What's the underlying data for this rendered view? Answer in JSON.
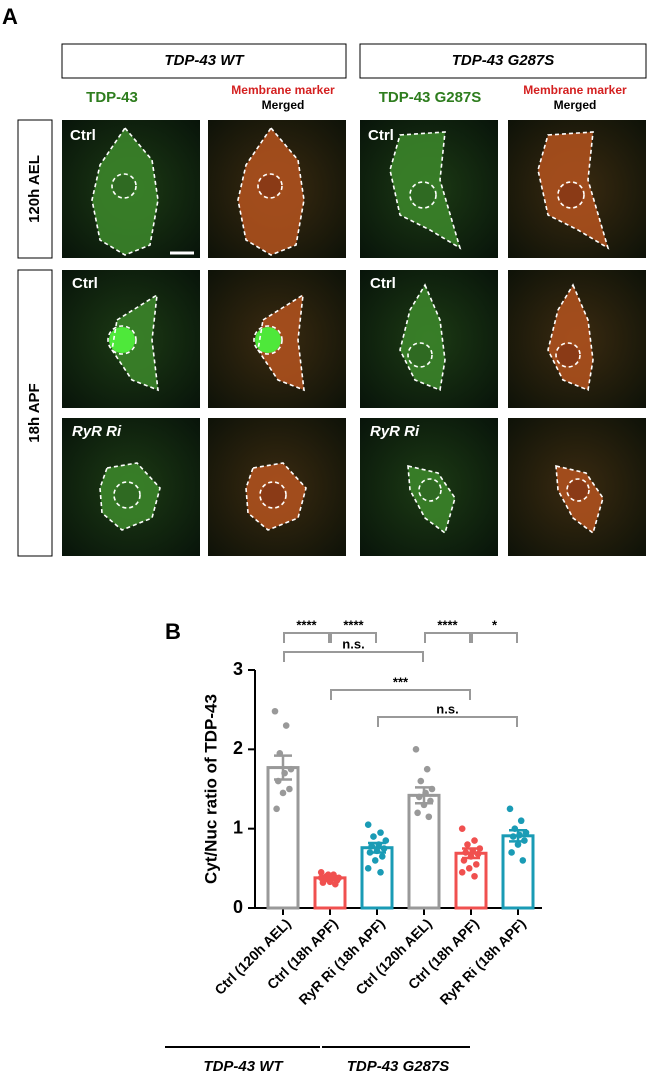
{
  "panel_a": {
    "label": "A",
    "groups": [
      "TDP-43 WT",
      "TDP-43 G287S"
    ],
    "channels": [
      {
        "text": "TDP-43",
        "color": "#2e7d1e"
      },
      {
        "text": "Membrane marker",
        "color": "#d42020"
      },
      {
        "text": "Merged",
        "color": "#000000"
      },
      {
        "text": "TDP-43 G287S",
        "color": "#2e7d1e"
      }
    ],
    "row_labels": [
      "120h AEL",
      "18h APF"
    ],
    "image_labels": [
      "Ctrl",
      "Ctrl",
      "Ctrl",
      "Ctrl",
      "RyR Ri",
      "RyR Ri"
    ]
  },
  "chart_data": {
    "type": "bar",
    "panel_label": "B",
    "ylabel": "Cyt/Nuc ratio of TDP-43",
    "categories": [
      "Ctrl (120h AEL)",
      "Ctrl (18h APF)",
      "RyR Ri (18h APF)",
      "Ctrl (120h AEL)",
      "Ctrl (18h APF)",
      "RyR Ri (18h APF)"
    ],
    "values": [
      1.77,
      0.38,
      0.76,
      1.42,
      0.69,
      0.91
    ],
    "errors": [
      0.15,
      0.02,
      0.06,
      0.1,
      0.06,
      0.07
    ],
    "colors": [
      "#999999",
      "#f0504f",
      "#1a9bb5",
      "#999999",
      "#f0504f",
      "#1a9bb5"
    ],
    "points": [
      [
        2.48,
        2.3,
        1.95,
        1.75,
        1.7,
        1.6,
        1.5,
        1.45,
        1.25
      ],
      [
        0.45,
        0.42,
        0.4,
        0.38,
        0.37,
        0.36,
        0.35,
        0.33,
        0.32,
        0.3,
        0.42,
        0.38
      ],
      [
        1.05,
        0.95,
        0.9,
        0.85,
        0.8,
        0.78,
        0.75,
        0.72,
        0.7,
        0.65,
        0.6,
        0.5,
        0.45
      ],
      [
        2.0,
        1.75,
        1.6,
        1.5,
        1.45,
        1.4,
        1.35,
        1.3,
        1.2,
        1.15
      ],
      [
        1.0,
        0.85,
        0.8,
        0.75,
        0.72,
        0.7,
        0.68,
        0.65,
        0.6,
        0.55,
        0.5,
        0.45,
        0.4
      ],
      [
        1.25,
        1.1,
        1.0,
        0.95,
        0.92,
        0.9,
        0.85,
        0.8,
        0.7,
        0.6
      ]
    ],
    "significance": [
      {
        "pair": [
          0,
          1
        ],
        "label": "****"
      },
      {
        "pair": [
          1,
          2
        ],
        "label": "****"
      },
      {
        "pair": [
          3,
          4
        ],
        "label": "****"
      },
      {
        "pair": [
          4,
          5
        ],
        "label": "*"
      },
      {
        "pair": [
          0,
          3
        ],
        "label": "n.s."
      },
      {
        "pair": [
          1,
          4
        ],
        "label": "***"
      },
      {
        "pair": [
          2,
          5
        ],
        "label": "n.s."
      }
    ],
    "group_labels": [
      "TDP-43 WT",
      "TDP-43 G287S"
    ],
    "ylim": [
      0,
      3
    ],
    "yticks": [
      0,
      1,
      2,
      3
    ]
  }
}
